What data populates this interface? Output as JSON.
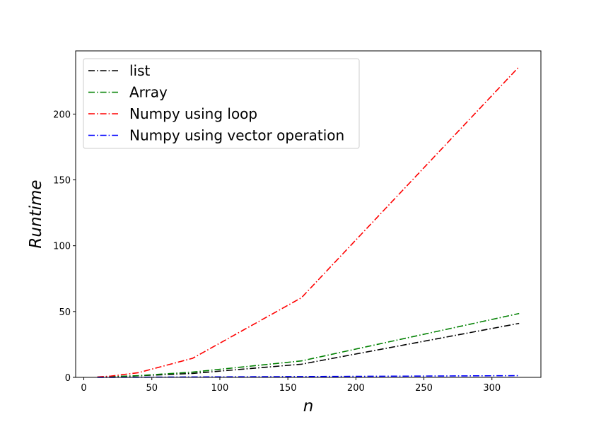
{
  "chart_data": {
    "type": "line",
    "title": "",
    "xlabel": "n",
    "ylabel": "Runtime",
    "xlim": [
      -6,
      336
    ],
    "ylim": [
      0,
      248
    ],
    "xticks": [
      0,
      50,
      100,
      150,
      200,
      250,
      300
    ],
    "yticks": [
      0,
      50,
      100,
      150,
      200
    ],
    "grid": false,
    "legend_position": "top-left",
    "x": [
      10,
      20,
      40,
      80,
      160,
      320
    ],
    "series": [
      {
        "name": "list",
        "color": "#000000",
        "values": [
          0.2,
          0.5,
          1.2,
          3.0,
          10.0,
          41.0
        ]
      },
      {
        "name": "Array",
        "color": "#008000",
        "values": [
          0.2,
          0.5,
          1.3,
          4.0,
          12.5,
          48.5
        ]
      },
      {
        "name": "Numpy using loop",
        "color": "#ff0000",
        "values": [
          0.3,
          1.0,
          3.5,
          14.5,
          60.5,
          236.0
        ]
      },
      {
        "name": "Numpy using vector operation",
        "color": "#0000ff",
        "values": [
          0.02,
          0.05,
          0.1,
          0.3,
          0.6,
          1.3
        ]
      }
    ]
  }
}
